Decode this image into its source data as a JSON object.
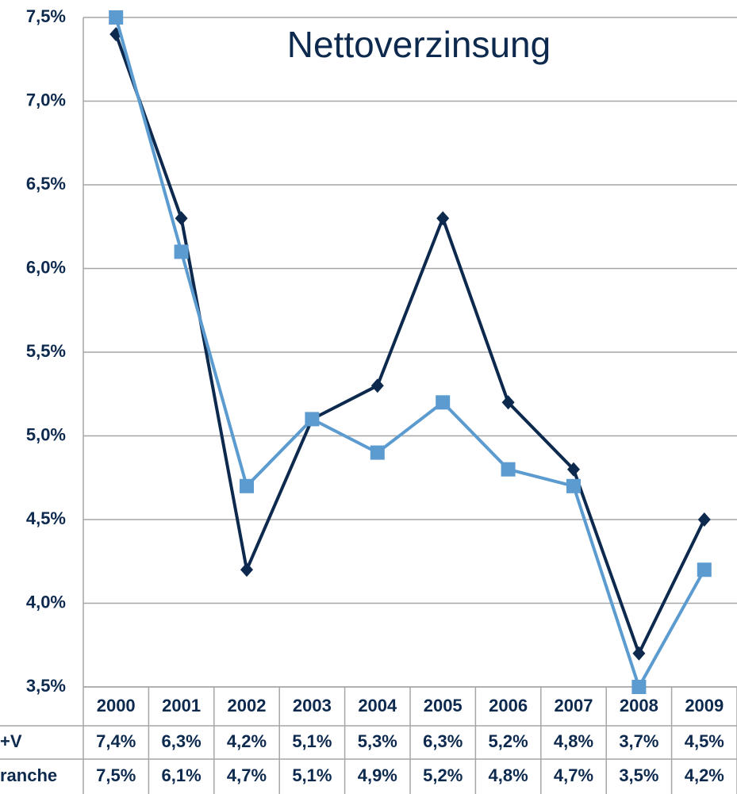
{
  "chart_data": {
    "type": "line",
    "title": "Nettoverzinsung",
    "categories": [
      "2000",
      "2001",
      "2002",
      "2003",
      "2004",
      "2005",
      "2006",
      "2007",
      "2008",
      "2009"
    ],
    "series": [
      {
        "name": "+V",
        "color": "#0d2a4e",
        "marker": "diamond",
        "values": [
          7.4,
          6.3,
          4.2,
          5.1,
          5.3,
          6.3,
          5.2,
          4.8,
          3.7,
          4.5
        ],
        "value_labels": [
          "7,4%",
          "6,3%",
          "4,2%",
          "5,1%",
          "5,3%",
          "6,3%",
          "5,2%",
          "4,8%",
          "3,7%",
          "4,5%"
        ]
      },
      {
        "name": "ranche",
        "color": "#5b9bd0",
        "marker": "square",
        "values": [
          7.5,
          6.1,
          4.7,
          5.1,
          4.9,
          5.2,
          4.8,
          4.7,
          3.5,
          4.2
        ],
        "value_labels": [
          "7,5%",
          "6,1%",
          "4,7%",
          "5,1%",
          "4,9%",
          "5,2%",
          "4,8%",
          "4,7%",
          "3,5%",
          "4,2%"
        ]
      }
    ],
    "ylim": [
      3.5,
      7.5
    ],
    "yticks": [
      {
        "value": 3.5,
        "label": "3,5%"
      },
      {
        "value": 4.0,
        "label": "4,0%"
      },
      {
        "value": 4.5,
        "label": "4,5%"
      },
      {
        "value": 5.0,
        "label": "5,0%"
      },
      {
        "value": 5.5,
        "label": "5,5%"
      },
      {
        "value": 6.0,
        "label": "6,0%"
      },
      {
        "value": 6.5,
        "label": "6,5%"
      },
      {
        "value": 7.0,
        "label": "7,0%"
      },
      {
        "value": 7.5,
        "label": "7,5%"
      }
    ],
    "grid": true
  }
}
